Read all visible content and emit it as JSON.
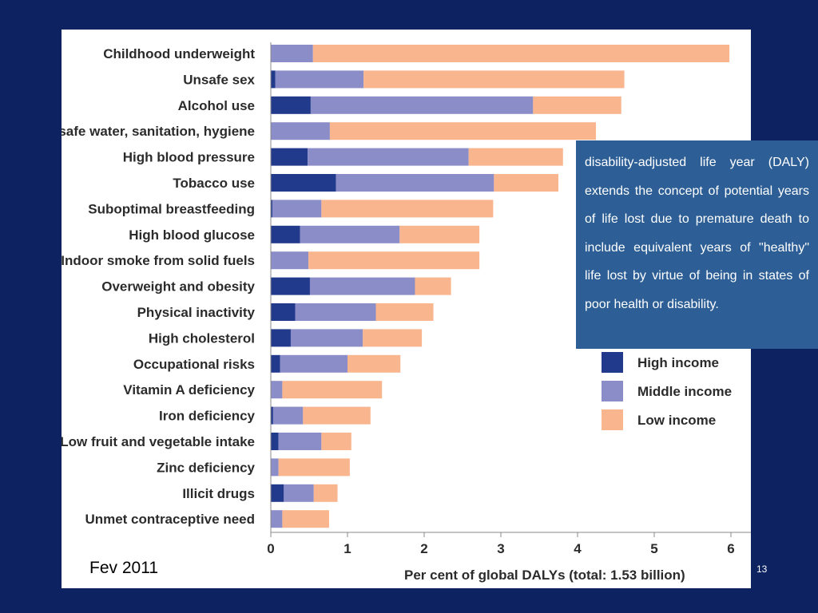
{
  "slide": {
    "footer_date": "Fev 2011",
    "page_number": "13",
    "definition": "disability-adjusted life year (DALY) extends the concept of potential years of life lost due to premature death to include equivalent years of \"healthy\" life lost by virtue of being in states of poor health or disability."
  },
  "colors": {
    "background": "#0d2260",
    "high_income": "#223a8c",
    "middle_income": "#8b8dc8",
    "low_income": "#f9b58e",
    "definition_box": "#2d5f96"
  },
  "chart_data": {
    "type": "bar",
    "orientation": "horizontal",
    "stacked": true,
    "xlabel": "Per cent of global DALYs (total: 1.53 billion)",
    "xlim": [
      0,
      6
    ],
    "xticks": [
      "0",
      "1",
      "2",
      "3",
      "4",
      "5",
      "6"
    ],
    "grid": false,
    "legend_position": "right",
    "categories": [
      "Childhood underweight",
      "Unsafe sex",
      "Alcohol use",
      "Unsafe water, sanitation, hygiene",
      "High blood pressure",
      "Tobacco use",
      "Suboptimal breastfeeding",
      "High blood glucose",
      "Indoor smoke from solid fuels",
      "Overweight and obesity",
      "Physical inactivity",
      "High cholesterol",
      "Occupational risks",
      "Vitamin A deficiency",
      "Iron deficiency",
      "Low fruit and vegetable intake",
      "Zinc deficiency",
      "Illicit drugs",
      "Unmet contraceptive need"
    ],
    "series": [
      {
        "name": "High income",
        "values": [
          0.0,
          0.06,
          0.52,
          0.0,
          0.48,
          0.85,
          0.02,
          0.38,
          0.0,
          0.51,
          0.32,
          0.26,
          0.12,
          0.0,
          0.03,
          0.1,
          0.0,
          0.17,
          0.0
        ]
      },
      {
        "name": "Middle income",
        "values": [
          0.55,
          1.15,
          2.9,
          0.77,
          2.1,
          2.06,
          0.64,
          1.3,
          0.49,
          1.37,
          1.05,
          0.94,
          0.88,
          0.15,
          0.39,
          0.56,
          0.1,
          0.39,
          0.15
        ]
      },
      {
        "name": "Low income",
        "values": [
          5.43,
          3.4,
          1.15,
          3.47,
          1.23,
          0.84,
          2.24,
          1.04,
          2.23,
          0.47,
          0.75,
          0.77,
          0.69,
          1.3,
          0.88,
          0.39,
          0.93,
          0.31,
          0.61
        ]
      }
    ]
  }
}
